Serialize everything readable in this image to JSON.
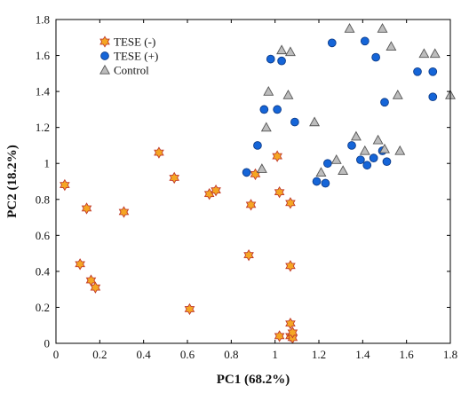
{
  "chart_data": {
    "type": "scatter",
    "xlabel": "PC1 (68.2%)",
    "ylabel": "PC2 (18.2%)",
    "xlim": [
      0,
      1.8
    ],
    "ylim": [
      0,
      1.8
    ],
    "x_ticks": [
      "0",
      "0.2",
      "0.4",
      "0.6",
      "0.8",
      "1",
      "1.2",
      "1.4",
      "1.6",
      "1.8"
    ],
    "y_ticks": [
      "0",
      "0.2",
      "0.4",
      "0.6",
      "0.8",
      "1",
      "1.2",
      "1.4",
      "1.6",
      "1.8"
    ],
    "grid": false,
    "legend_position": "top-left",
    "series": [
      {
        "name": "TESE (-)",
        "marker": "star",
        "color": "#f5a623",
        "edge_color": "#c0392b",
        "points": [
          [
            0.04,
            0.88
          ],
          [
            0.11,
            0.44
          ],
          [
            0.14,
            0.75
          ],
          [
            0.16,
            0.35
          ],
          [
            0.18,
            0.31
          ],
          [
            0.31,
            0.73
          ],
          [
            0.47,
            1.06
          ],
          [
            0.54,
            0.92
          ],
          [
            0.61,
            0.19
          ],
          [
            0.7,
            0.83
          ],
          [
            0.73,
            0.85
          ],
          [
            0.88,
            0.49
          ],
          [
            0.89,
            0.77
          ],
          [
            0.91,
            0.94
          ],
          [
            1.01,
            1.04
          ],
          [
            1.02,
            0.84
          ],
          [
            1.02,
            0.04
          ],
          [
            1.07,
            0.78
          ],
          [
            1.07,
            0.43
          ],
          [
            1.07,
            0.11
          ],
          [
            1.07,
            0.04
          ],
          [
            1.08,
            0.03
          ],
          [
            1.08,
            0.06
          ]
        ]
      },
      {
        "name": "TESE (+)",
        "marker": "circle",
        "color": "#1565d8",
        "edge_color": "#0d3c8a",
        "points": [
          [
            0.87,
            0.95
          ],
          [
            0.92,
            1.1
          ],
          [
            0.95,
            1.3
          ],
          [
            0.98,
            1.58
          ],
          [
            1.01,
            1.3
          ],
          [
            1.03,
            1.57
          ],
          [
            1.09,
            1.23
          ],
          [
            1.19,
            0.9
          ],
          [
            1.23,
            0.89
          ],
          [
            1.24,
            1.0
          ],
          [
            1.26,
            1.67
          ],
          [
            1.35,
            1.1
          ],
          [
            1.39,
            1.02
          ],
          [
            1.41,
            1.68
          ],
          [
            1.42,
            0.99
          ],
          [
            1.45,
            1.03
          ],
          [
            1.46,
            1.59
          ],
          [
            1.49,
            1.07
          ],
          [
            1.5,
            1.34
          ],
          [
            1.51,
            1.01
          ],
          [
            1.65,
            1.51
          ],
          [
            1.72,
            1.51
          ],
          [
            1.72,
            1.37
          ]
        ]
      },
      {
        "name": "Control",
        "marker": "triangle",
        "color": "#bdbdbd",
        "edge_color": "#555555",
        "points": [
          [
            0.94,
            0.97
          ],
          [
            0.96,
            1.2
          ],
          [
            0.97,
            1.4
          ],
          [
            1.03,
            1.63
          ],
          [
            1.06,
            1.38
          ],
          [
            1.07,
            1.62
          ],
          [
            1.18,
            1.23
          ],
          [
            1.21,
            0.95
          ],
          [
            1.28,
            1.02
          ],
          [
            1.31,
            0.96
          ],
          [
            1.34,
            1.75
          ],
          [
            1.37,
            1.15
          ],
          [
            1.41,
            1.07
          ],
          [
            1.47,
            1.13
          ],
          [
            1.49,
            1.75
          ],
          [
            1.5,
            1.08
          ],
          [
            1.53,
            1.65
          ],
          [
            1.56,
            1.38
          ],
          [
            1.57,
            1.07
          ],
          [
            1.68,
            1.61
          ],
          [
            1.73,
            1.61
          ],
          [
            1.8,
            1.38
          ]
        ]
      }
    ]
  }
}
